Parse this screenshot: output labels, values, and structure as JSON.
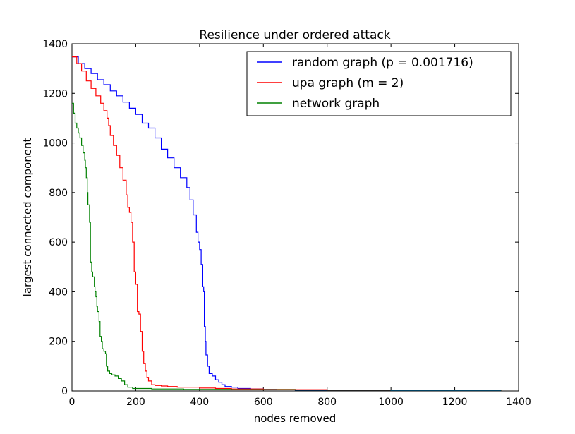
{
  "chart_data": {
    "type": "line",
    "title": "Resilience under ordered attack",
    "xlabel": "nodes removed",
    "ylabel": "largest connected component",
    "xlim": [
      0,
      1400
    ],
    "ylim": [
      0,
      1400
    ],
    "xticks": [
      0,
      200,
      400,
      600,
      800,
      1000,
      1200,
      1400
    ],
    "yticks": [
      0,
      200,
      400,
      600,
      800,
      1000,
      1200,
      1400
    ],
    "grid": false,
    "legend_position": "top-right",
    "series": [
      {
        "name": "random graph (p = 0.001716)",
        "color": "#0000ff",
        "points": [
          [
            0,
            1347
          ],
          [
            20,
            1320
          ],
          [
            40,
            1300
          ],
          [
            60,
            1280
          ],
          [
            80,
            1255
          ],
          [
            100,
            1235
          ],
          [
            120,
            1210
          ],
          [
            140,
            1190
          ],
          [
            160,
            1165
          ],
          [
            180,
            1140
          ],
          [
            200,
            1115
          ],
          [
            220,
            1080
          ],
          [
            240,
            1060
          ],
          [
            260,
            1020
          ],
          [
            280,
            975
          ],
          [
            300,
            940
          ],
          [
            320,
            900
          ],
          [
            340,
            860
          ],
          [
            360,
            820
          ],
          [
            370,
            770
          ],
          [
            380,
            710
          ],
          [
            390,
            640
          ],
          [
            395,
            600
          ],
          [
            400,
            570
          ],
          [
            405,
            510
          ],
          [
            410,
            420
          ],
          [
            413,
            400
          ],
          [
            415,
            260
          ],
          [
            418,
            200
          ],
          [
            420,
            145
          ],
          [
            425,
            100
          ],
          [
            430,
            70
          ],
          [
            440,
            60
          ],
          [
            450,
            45
          ],
          [
            460,
            35
          ],
          [
            470,
            25
          ],
          [
            480,
            18
          ],
          [
            500,
            15
          ],
          [
            520,
            10
          ],
          [
            560,
            8
          ],
          [
            600,
            6
          ],
          [
            640,
            5
          ],
          [
            700,
            3
          ],
          [
            800,
            3
          ],
          [
            1000,
            2
          ],
          [
            1200,
            2
          ],
          [
            1345,
            2
          ]
        ]
      },
      {
        "name": "upa graph (m = 2)",
        "color": "#ff0000",
        "points": [
          [
            0,
            1347
          ],
          [
            15,
            1320
          ],
          [
            30,
            1290
          ],
          [
            45,
            1250
          ],
          [
            60,
            1220
          ],
          [
            75,
            1190
          ],
          [
            90,
            1160
          ],
          [
            100,
            1130
          ],
          [
            110,
            1100
          ],
          [
            115,
            1070
          ],
          [
            120,
            1030
          ],
          [
            130,
            990
          ],
          [
            140,
            950
          ],
          [
            150,
            900
          ],
          [
            160,
            850
          ],
          [
            170,
            790
          ],
          [
            175,
            740
          ],
          [
            180,
            720
          ],
          [
            185,
            680
          ],
          [
            190,
            600
          ],
          [
            195,
            480
          ],
          [
            200,
            430
          ],
          [
            205,
            320
          ],
          [
            210,
            310
          ],
          [
            215,
            240
          ],
          [
            220,
            160
          ],
          [
            225,
            110
          ],
          [
            230,
            80
          ],
          [
            235,
            55
          ],
          [
            240,
            40
          ],
          [
            250,
            25
          ],
          [
            260,
            22
          ],
          [
            280,
            20
          ],
          [
            300,
            18
          ],
          [
            330,
            15
          ],
          [
            400,
            12
          ],
          [
            450,
            10
          ],
          [
            500,
            8
          ],
          [
            600,
            6
          ],
          [
            700,
            5
          ],
          [
            800,
            4
          ],
          [
            1000,
            3
          ],
          [
            1200,
            3
          ],
          [
            1345,
            2
          ]
        ]
      },
      {
        "name": "network graph",
        "color": "#008000",
        "points": [
          [
            0,
            1160
          ],
          [
            5,
            1120
          ],
          [
            10,
            1080
          ],
          [
            15,
            1060
          ],
          [
            20,
            1040
          ],
          [
            25,
            1020
          ],
          [
            30,
            990
          ],
          [
            35,
            960
          ],
          [
            40,
            930
          ],
          [
            42,
            900
          ],
          [
            45,
            860
          ],
          [
            48,
            800
          ],
          [
            50,
            750
          ],
          [
            55,
            680
          ],
          [
            58,
            520
          ],
          [
            62,
            480
          ],
          [
            65,
            460
          ],
          [
            70,
            420
          ],
          [
            72,
            400
          ],
          [
            75,
            380
          ],
          [
            78,
            340
          ],
          [
            80,
            320
          ],
          [
            85,
            280
          ],
          [
            88,
            220
          ],
          [
            92,
            200
          ],
          [
            95,
            170
          ],
          [
            100,
            160
          ],
          [
            105,
            150
          ],
          [
            108,
            100
          ],
          [
            112,
            80
          ],
          [
            118,
            70
          ],
          [
            125,
            65
          ],
          [
            135,
            60
          ],
          [
            145,
            50
          ],
          [
            155,
            40
          ],
          [
            165,
            25
          ],
          [
            175,
            15
          ],
          [
            190,
            10
          ],
          [
            250,
            8
          ],
          [
            350,
            6
          ],
          [
            500,
            5
          ],
          [
            700,
            4
          ],
          [
            1000,
            3
          ],
          [
            1345,
            2
          ]
        ]
      }
    ]
  }
}
